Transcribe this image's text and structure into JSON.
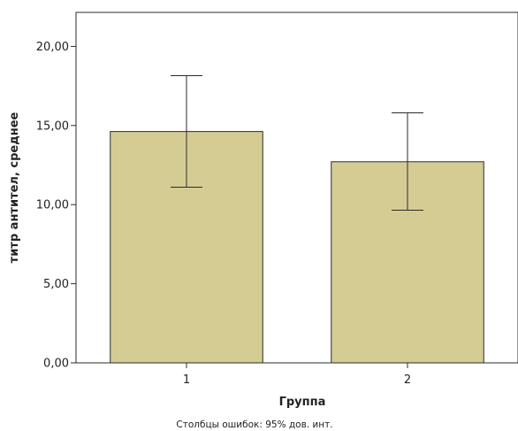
{
  "chart_data": {
    "type": "bar",
    "categories": [
      "1",
      "2"
    ],
    "values": [
      14.62,
      12.71
    ],
    "error_low": [
      11.1,
      9.65
    ],
    "error_high": [
      18.15,
      15.8
    ],
    "xlabel": "Группа",
    "ylabel": "титр антител, среднее",
    "yticks": [
      "0,00",
      "5,00",
      "10,00",
      "15,00",
      "20,00"
    ],
    "ytick_values": [
      0,
      5,
      10,
      15,
      20
    ],
    "ylim": [
      0,
      22.15
    ],
    "grid": false,
    "footnote": "Столбцы ошибок: 95% дов. инт.",
    "colors": {
      "bar_fill": "#d5cc94",
      "bar_stroke": "#2b2b2b",
      "axis": "#2b2b2b"
    }
  }
}
